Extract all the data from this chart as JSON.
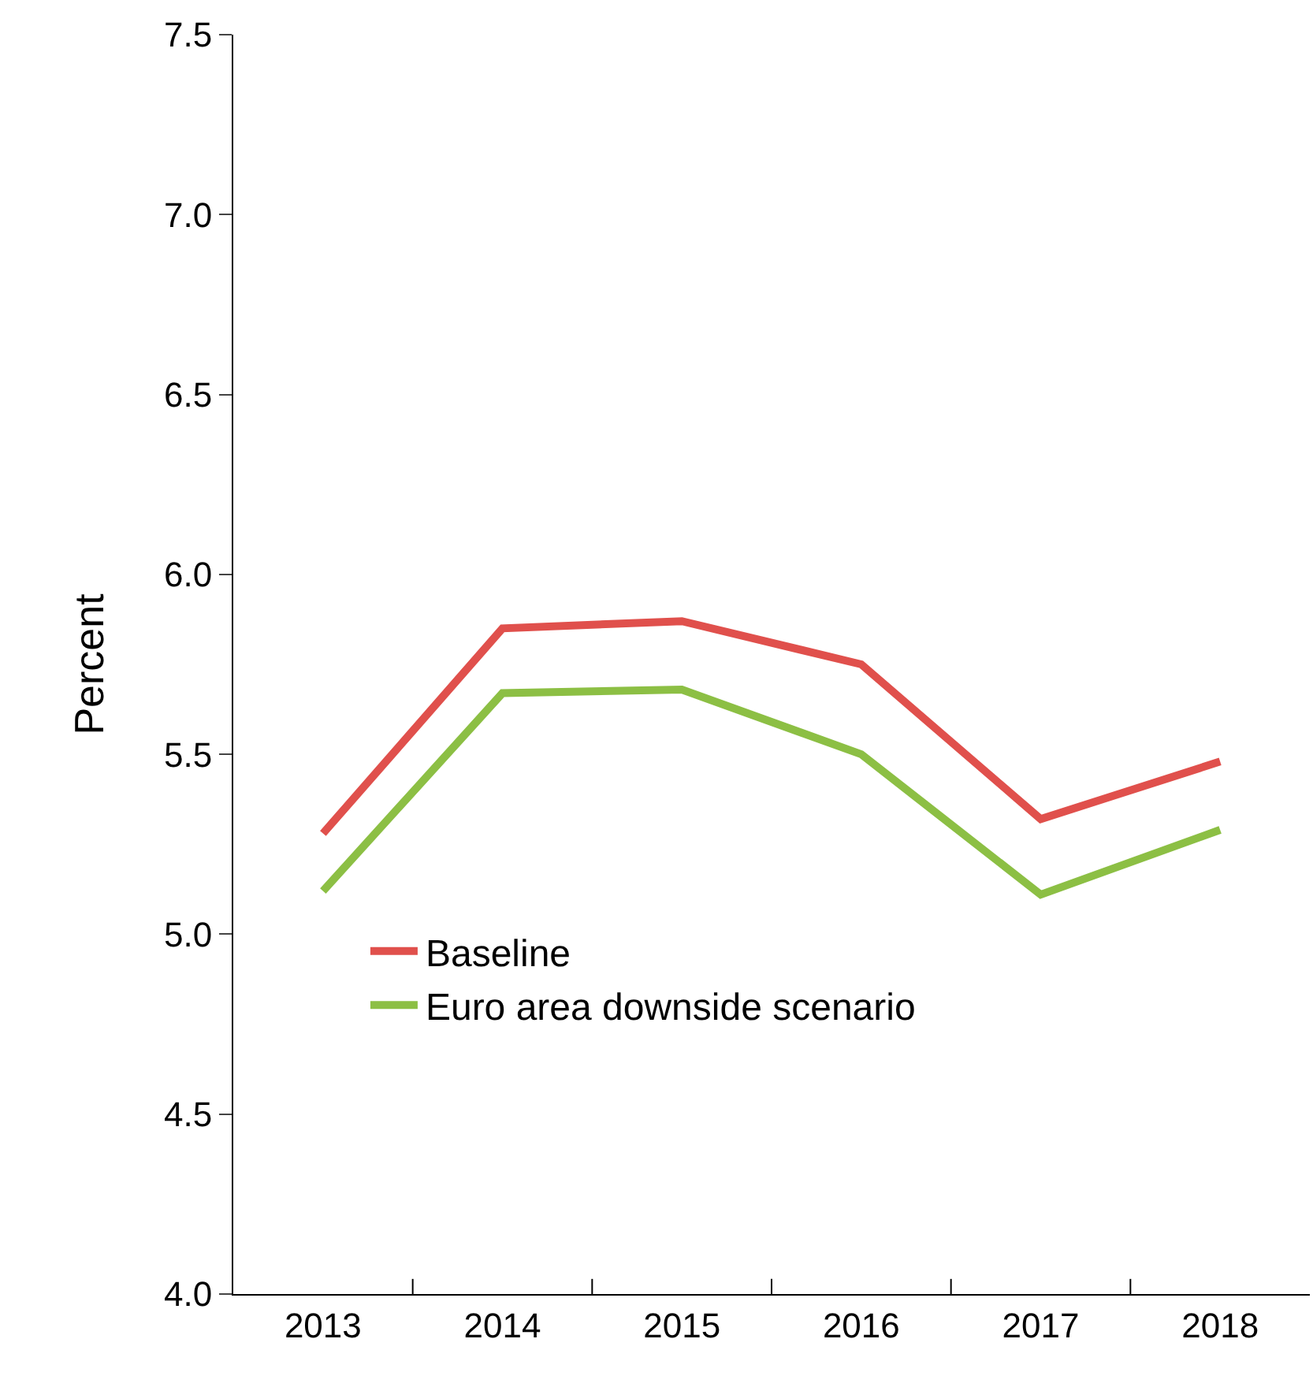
{
  "chart_data": {
    "type": "line",
    "ylabel": "Percent",
    "categories": [
      "2013",
      "2014",
      "2015",
      "2016",
      "2017",
      "2018"
    ],
    "series": [
      {
        "name": "Baseline",
        "color": "#e0504c",
        "values": [
          5.28,
          5.85,
          5.87,
          5.75,
          5.32,
          5.48
        ]
      },
      {
        "name": "Euro area downside scenario",
        "color": "#8cbf44",
        "values": [
          5.12,
          5.67,
          5.68,
          5.5,
          5.11,
          5.29
        ]
      }
    ],
    "ylim": [
      4.0,
      7.5
    ],
    "yticks": [
      {
        "value": 4.0,
        "label": "4.0"
      },
      {
        "value": 4.5,
        "label": "4.5"
      },
      {
        "value": 5.0,
        "label": "5.0"
      },
      {
        "value": 5.5,
        "label": "5.5"
      },
      {
        "value": 6.0,
        "label": "6.0"
      },
      {
        "value": 6.5,
        "label": "6.5"
      },
      {
        "value": 7.0,
        "label": "7.0"
      },
      {
        "value": 7.5,
        "label": "7.5"
      }
    ],
    "legend": "bottom left",
    "marker": "none",
    "line_style": "solid"
  }
}
